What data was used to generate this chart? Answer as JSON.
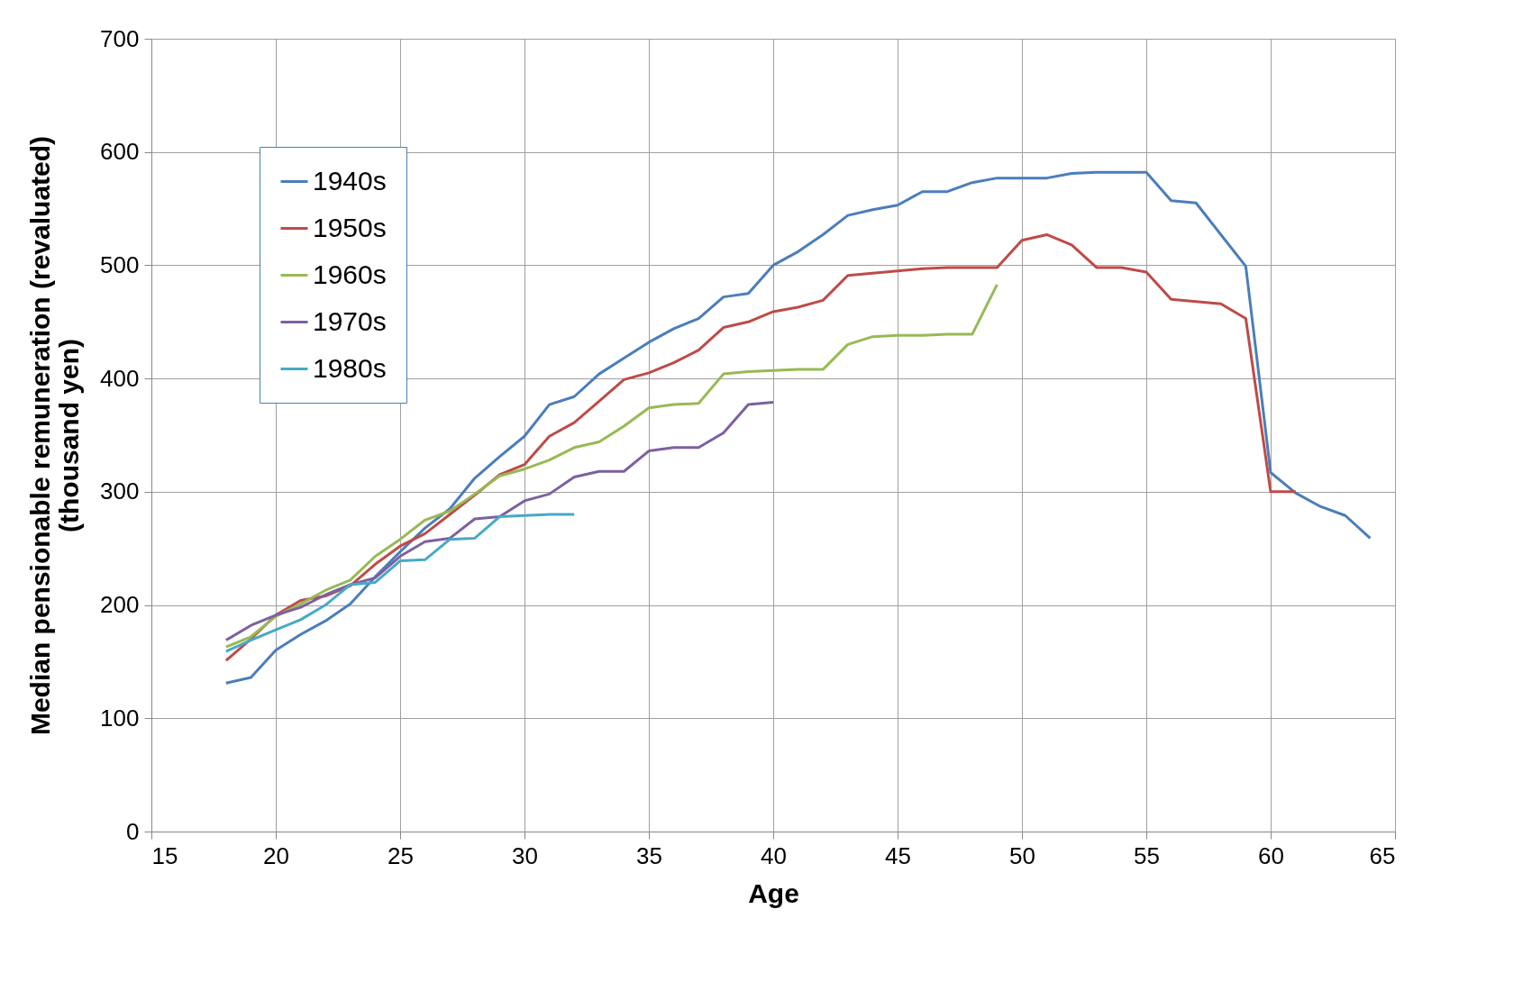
{
  "chart_data": {
    "type": "line",
    "xlabel": "Age",
    "ylabel": "Median pensionable remuneration (revaluated)\n(thousand yen)",
    "xlim": [
      15,
      65
    ],
    "xticks": [
      15,
      20,
      25,
      30,
      35,
      40,
      45,
      50,
      55,
      60,
      65
    ],
    "ylim": [
      0,
      700
    ],
    "yticks": [
      0,
      100,
      200,
      300,
      400,
      500,
      600,
      700
    ],
    "grid": true,
    "legend": "top left",
    "marker": "none",
    "line_style": "solid",
    "series": [
      {
        "name": "1940s",
        "color": "#4a7ebb",
        "x": [
          18,
          19,
          20,
          21,
          22,
          23,
          24,
          25,
          26,
          27,
          28,
          29,
          30,
          31,
          32,
          33,
          34,
          35,
          36,
          37,
          38,
          39,
          40,
          41,
          42,
          43,
          44,
          45,
          46,
          47,
          48,
          49,
          50,
          51,
          52,
          53,
          54,
          55,
          56,
          57,
          58,
          59,
          60,
          61,
          62,
          63,
          64
        ],
        "values": [
          131,
          136,
          160,
          174,
          186,
          201,
          225,
          247,
          268,
          285,
          312,
          331,
          349,
          377,
          384,
          404,
          418,
          432,
          444,
          453,
          472,
          475,
          500,
          512,
          527,
          544,
          549,
          553,
          565,
          565,
          573,
          577,
          577,
          577,
          581,
          582,
          582,
          582,
          557,
          555,
          527,
          499,
          317,
          299,
          287,
          279,
          259
        ]
      },
      {
        "name": "1950s",
        "color": "#be4b48",
        "x": [
          18,
          19,
          20,
          21,
          22,
          23,
          24,
          25,
          26,
          27,
          28,
          29,
          30,
          31,
          32,
          33,
          34,
          35,
          36,
          37,
          38,
          39,
          40,
          41,
          42,
          43,
          44,
          45,
          46,
          47,
          48,
          49,
          50,
          51,
          52,
          53,
          54,
          55,
          56,
          57,
          58,
          59,
          60,
          61
        ],
        "values": [
          151,
          170,
          191,
          204,
          208,
          217,
          236,
          252,
          263,
          280,
          297,
          315,
          324,
          349,
          361,
          380,
          399,
          405,
          414,
          425,
          445,
          450,
          459,
          463,
          469,
          491,
          493,
          495,
          497,
          498,
          498,
          498,
          522,
          527,
          518,
          498,
          498,
          494,
          470,
          468,
          466,
          453,
          300,
          300
        ]
      },
      {
        "name": "1960s",
        "color": "#98b954",
        "x": [
          18,
          19,
          20,
          21,
          22,
          23,
          24,
          25,
          26,
          27,
          28,
          29,
          30,
          31,
          32,
          33,
          34,
          35,
          36,
          37,
          38,
          39,
          40,
          41,
          42,
          43,
          44,
          45,
          46,
          47,
          48,
          49
        ],
        "values": [
          163,
          172,
          190,
          201,
          213,
          222,
          243,
          258,
          275,
          283,
          298,
          314,
          320,
          328,
          339,
          344,
          358,
          374,
          377,
          378,
          404,
          406,
          407,
          408,
          408,
          430,
          437,
          438,
          438,
          439,
          439,
          483
        ]
      },
      {
        "name": "1970s",
        "color": "#7d60a0",
        "x": [
          18,
          19,
          20,
          21,
          22,
          23,
          24,
          25,
          26,
          27,
          28,
          29,
          30,
          31,
          32,
          33,
          34,
          35,
          36,
          37,
          38,
          39,
          40
        ],
        "values": [
          169,
          182,
          191,
          198,
          209,
          218,
          224,
          243,
          256,
          259,
          276,
          278,
          292,
          298,
          313,
          318,
          318,
          336,
          339,
          339,
          352,
          377,
          379
        ]
      },
      {
        "name": "1980s",
        "color": "#46aac5",
        "x": [
          18,
          19,
          20,
          21,
          22,
          23,
          24,
          25,
          26,
          27,
          28,
          29,
          30,
          31,
          32
        ],
        "values": [
          159,
          169,
          178,
          187,
          200,
          218,
          220,
          239,
          240,
          258,
          259,
          278,
          279,
          280,
          280
        ]
      }
    ]
  }
}
